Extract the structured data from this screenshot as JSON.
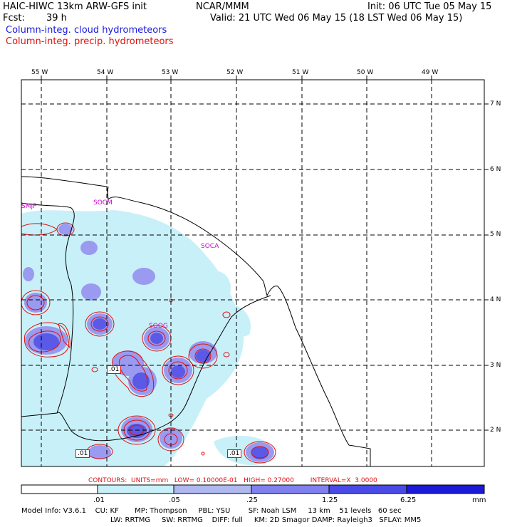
{
  "header": {
    "line1_left": "HAIC-HIWC 13km ARW-GFS init",
    "line1_mid": "NCAR/MMM",
    "line1_right": "Init: 06 UTC Tue 05 May 15",
    "fcst_label": "Fcst:",
    "fcst_value": "39 h",
    "valid": "Valid: 21 UTC Wed 06 May 15 (18 LST Wed 06 May 15)",
    "field1": "Column-integ. cloud hydrometeors",
    "field2": "Column-integ. precip. hydrometeors"
  },
  "colors": {
    "field1": "#1a1ae0",
    "field2": "#e01010",
    "station": "#d000d0"
  },
  "map": {
    "lon_labels": [
      "55 W",
      "54 W",
      "53 W",
      "52 W",
      "51 W",
      "50 W",
      "49 W"
    ],
    "lat_labels": [
      "7 N",
      "6 N",
      "5 N",
      "4 N",
      "3 N",
      "2 N"
    ],
    "stations": [
      "SMJP",
      "SOCM",
      "SOCA",
      "SOOG"
    ],
    "contour_value_labels": [
      ".01",
      ".01",
      ".01"
    ]
  },
  "contour_info": "CONTOURS:  UNITS=mm   LOW= 0.10000E-01   HIGH= 0.27000        INTERVAL=X  3.0000",
  "colorbar": {
    "ticks": [
      ".01",
      ".05",
      ".25",
      "1.25",
      "6.25"
    ],
    "units": "mm",
    "fills": [
      "#ffffff",
      "#c8f0f8",
      "#b0b8f0",
      "#8080f0",
      "#4a4ae8",
      "#1a1ad8"
    ]
  },
  "model_info": {
    "line1": "Model Info: V3.6.1    CU: KF       MP: Thompson     PBL: YSU        SF: Noah LSM     13 km    51 levels   60 sec",
    "line2": "LW: RRTMG     SW: RRTMG    DIFF: full     KM: 2D Smagor DAMP: Rayleigh3   SFLAY: MM5"
  }
}
